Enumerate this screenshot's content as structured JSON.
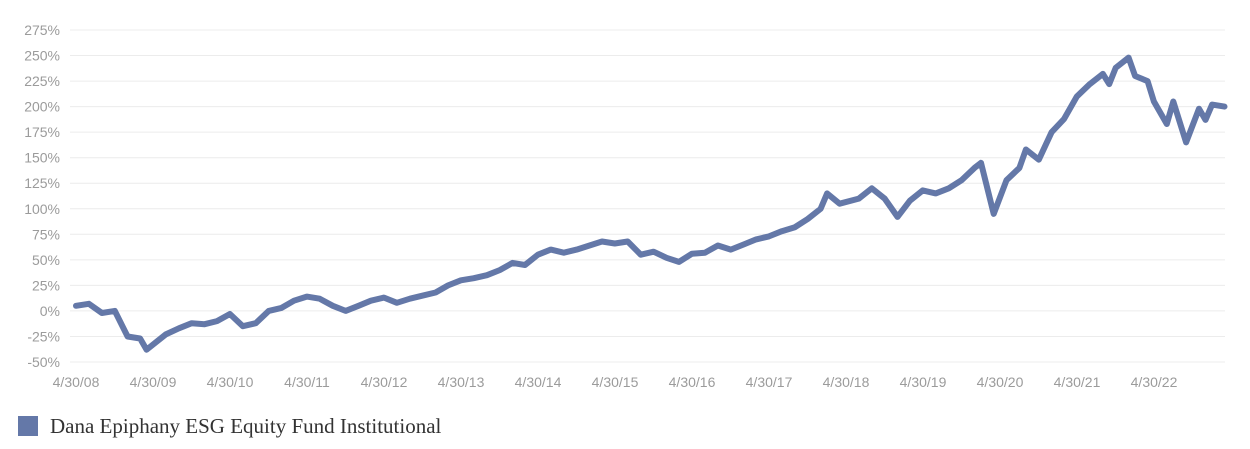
{
  "chart_data": {
    "type": "line",
    "title": "",
    "xlabel": "",
    "ylabel": "",
    "ylim": [
      -50,
      275
    ],
    "y_ticks": [
      "275%",
      "250%",
      "225%",
      "200%",
      "175%",
      "150%",
      "125%",
      "100%",
      "75%",
      "50%",
      "25%",
      "0%",
      "-25%",
      "-50%"
    ],
    "x_ticks": [
      "4/30/08",
      "4/30/09",
      "4/30/10",
      "4/30/11",
      "4/30/12",
      "4/30/13",
      "4/30/14",
      "4/30/15",
      "4/30/16",
      "4/30/17",
      "4/30/18",
      "4/30/19",
      "4/30/20",
      "4/30/21",
      "4/30/22"
    ],
    "grid": true,
    "legend_position": "bottom-left",
    "series": [
      {
        "name": "Dana Epiphany ESG Equity Fund Institutional",
        "color": "#6478a8",
        "points": [
          [
            "2008-04-30",
            5
          ],
          [
            "2008-06-30",
            7
          ],
          [
            "2008-08-31",
            -2
          ],
          [
            "2008-10-31",
            0
          ],
          [
            "2008-12-31",
            -25
          ],
          [
            "2009-02-28",
            -27
          ],
          [
            "2009-03-31",
            -38
          ],
          [
            "2009-06-30",
            -23
          ],
          [
            "2009-08-31",
            -17
          ],
          [
            "2009-10-31",
            -12
          ],
          [
            "2009-12-31",
            -13
          ],
          [
            "2010-02-28",
            -10
          ],
          [
            "2010-04-30",
            -3
          ],
          [
            "2010-06-30",
            -15
          ],
          [
            "2010-08-31",
            -12
          ],
          [
            "2010-10-31",
            0
          ],
          [
            "2010-12-31",
            3
          ],
          [
            "2011-02-28",
            10
          ],
          [
            "2011-04-30",
            14
          ],
          [
            "2011-06-30",
            12
          ],
          [
            "2011-08-31",
            5
          ],
          [
            "2011-10-31",
            0
          ],
          [
            "2011-12-31",
            5
          ],
          [
            "2012-02-28",
            10
          ],
          [
            "2012-04-30",
            13
          ],
          [
            "2012-06-30",
            8
          ],
          [
            "2012-08-31",
            12
          ],
          [
            "2012-10-31",
            15
          ],
          [
            "2012-12-31",
            18
          ],
          [
            "2013-02-28",
            25
          ],
          [
            "2013-04-30",
            30
          ],
          [
            "2013-06-30",
            32
          ],
          [
            "2013-08-31",
            35
          ],
          [
            "2013-10-31",
            40
          ],
          [
            "2013-12-31",
            47
          ],
          [
            "2014-02-28",
            45
          ],
          [
            "2014-04-30",
            55
          ],
          [
            "2014-06-30",
            60
          ],
          [
            "2014-08-31",
            57
          ],
          [
            "2014-10-31",
            60
          ],
          [
            "2014-12-31",
            64
          ],
          [
            "2015-02-28",
            68
          ],
          [
            "2015-04-30",
            66
          ],
          [
            "2015-06-30",
            68
          ],
          [
            "2015-08-31",
            55
          ],
          [
            "2015-10-31",
            58
          ],
          [
            "2015-12-31",
            52
          ],
          [
            "2016-02-28",
            48
          ],
          [
            "2016-04-30",
            56
          ],
          [
            "2016-06-30",
            57
          ],
          [
            "2016-08-31",
            64
          ],
          [
            "2016-10-31",
            60
          ],
          [
            "2016-12-31",
            65
          ],
          [
            "2017-02-28",
            70
          ],
          [
            "2017-04-30",
            73
          ],
          [
            "2017-06-30",
            78
          ],
          [
            "2017-08-31",
            82
          ],
          [
            "2017-10-31",
            90
          ],
          [
            "2017-12-31",
            100
          ],
          [
            "2018-01-31",
            115
          ],
          [
            "2018-03-31",
            105
          ],
          [
            "2018-06-30",
            110
          ],
          [
            "2018-08-31",
            120
          ],
          [
            "2018-10-31",
            110
          ],
          [
            "2018-12-31",
            92
          ],
          [
            "2019-02-28",
            108
          ],
          [
            "2019-04-30",
            118
          ],
          [
            "2019-06-30",
            115
          ],
          [
            "2019-08-31",
            120
          ],
          [
            "2019-10-31",
            128
          ],
          [
            "2019-12-31",
            140
          ],
          [
            "2020-01-31",
            145
          ],
          [
            "2020-03-31",
            95
          ],
          [
            "2020-05-31",
            128
          ],
          [
            "2020-07-31",
            140
          ],
          [
            "2020-08-31",
            158
          ],
          [
            "2020-10-31",
            148
          ],
          [
            "2020-12-31",
            175
          ],
          [
            "2021-02-28",
            188
          ],
          [
            "2021-04-30",
            210
          ],
          [
            "2021-06-30",
            222
          ],
          [
            "2021-08-31",
            232
          ],
          [
            "2021-09-30",
            222
          ],
          [
            "2021-10-31",
            238
          ],
          [
            "2021-12-31",
            248
          ],
          [
            "2022-01-31",
            230
          ],
          [
            "2022-03-31",
            225
          ],
          [
            "2022-04-30",
            205
          ],
          [
            "2022-06-30",
            183
          ],
          [
            "2022-07-31",
            205
          ],
          [
            "2022-09-30",
            165
          ],
          [
            "2022-11-30",
            198
          ],
          [
            "2022-12-31",
            187
          ],
          [
            "2023-01-31",
            202
          ],
          [
            "2023-03-31",
            200
          ]
        ]
      }
    ]
  },
  "legend": {
    "label": "Dana Epiphany ESG Equity Fund Institutional",
    "color": "#6478a8"
  }
}
